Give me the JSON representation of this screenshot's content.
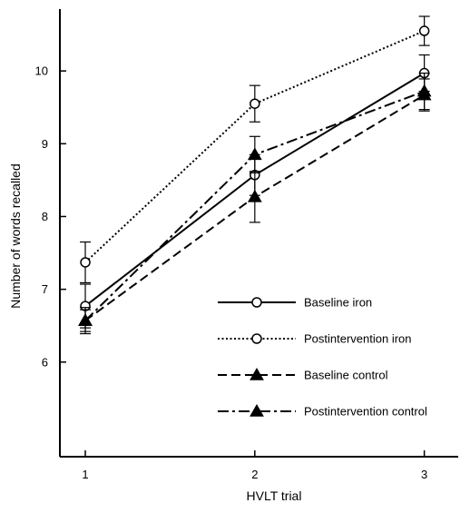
{
  "chart_data": {
    "type": "line",
    "title": "",
    "xlabel": "HVLT trial",
    "ylabel": "Number of words recalled",
    "categories": [
      "1",
      "2",
      "3"
    ],
    "x": [
      1,
      2,
      3
    ],
    "xlim": [
      0.85,
      3.2
    ],
    "ylim": [
      4.7,
      10.85
    ],
    "yticks": [
      6,
      7,
      8,
      9,
      10
    ],
    "grid": false,
    "legend_position": "bottom-right",
    "series": [
      {
        "name": "Baseline iron",
        "values": [
          6.77,
          8.57,
          9.97
        ],
        "errors": [
          0.3,
          0.28,
          0.25
        ],
        "marker": "open-circle",
        "line_style": "solid"
      },
      {
        "name": "Postintervention iron",
        "values": [
          7.37,
          9.55,
          10.55
        ],
        "errors": [
          0.28,
          0.25,
          0.2
        ],
        "marker": "open-circle",
        "line_style": "dotted"
      },
      {
        "name": "Baseline control",
        "values": [
          6.57,
          8.27,
          9.67
        ],
        "errors": [
          0.18,
          0.35,
          0.22
        ],
        "marker": "filled-triangle",
        "line_style": "dashed"
      },
      {
        "name": "Postintervention control",
        "values": [
          6.57,
          8.85,
          9.72
        ],
        "errors": [
          0.15,
          0.25,
          0.25
        ],
        "marker": "filled-triangle",
        "line_style": "dash-dot"
      }
    ]
  }
}
